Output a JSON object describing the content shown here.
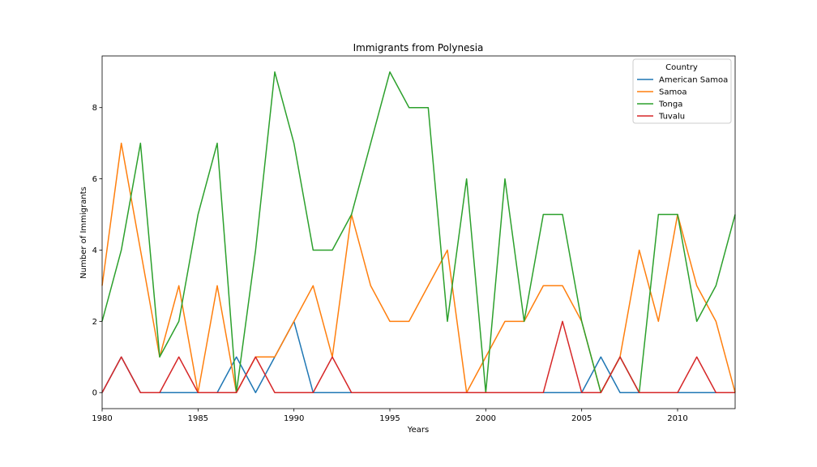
{
  "chart_data": {
    "type": "line",
    "title": "Immigrants from Polynesia",
    "xlabel": "Years",
    "ylabel": "Number of Immigrants",
    "xlim": [
      1980,
      2013
    ],
    "ylim": [
      -0.45,
      9.45
    ],
    "xticks": [
      1980,
      1985,
      1990,
      1995,
      2000,
      2005,
      2010
    ],
    "yticks": [
      0,
      2,
      4,
      6,
      8
    ],
    "grid": false,
    "legend": {
      "title": "Country",
      "position": "top-right"
    },
    "x": [
      1980,
      1981,
      1982,
      1983,
      1984,
      1985,
      1986,
      1987,
      1988,
      1989,
      1990,
      1991,
      1992,
      1993,
      1994,
      1995,
      1996,
      1997,
      1998,
      1999,
      2000,
      2001,
      2002,
      2003,
      2004,
      2005,
      2006,
      2007,
      2008,
      2009,
      2010,
      2011,
      2012,
      2013
    ],
    "series": [
      {
        "name": "American Samoa",
        "color": "#1f77b4",
        "values": [
          0,
          1,
          0,
          0,
          0,
          0,
          0,
          1,
          0,
          1,
          2,
          0,
          0,
          0,
          0,
          0,
          0,
          0,
          0,
          0,
          0,
          0,
          0,
          0,
          0,
          0,
          1,
          0,
          0,
          0,
          0,
          0,
          0,
          0
        ]
      },
      {
        "name": "Samoa",
        "color": "#ff7f0e",
        "values": [
          3,
          7,
          4,
          1,
          3,
          0,
          3,
          0,
          1,
          1,
          2,
          3,
          1,
          5,
          3,
          2,
          2,
          3,
          4,
          0,
          1,
          2,
          2,
          3,
          3,
          2,
          0,
          1,
          4,
          2,
          5,
          3,
          2,
          0
        ]
      },
      {
        "name": "Tonga",
        "color": "#2ca02c",
        "values": [
          2,
          4,
          7,
          1,
          2,
          5,
          7,
          0,
          4,
          9,
          7,
          4,
          4,
          5,
          7,
          9,
          8,
          8,
          2,
          6,
          0,
          6,
          2,
          5,
          5,
          2,
          0,
          1,
          0,
          5,
          5,
          2,
          3,
          5
        ]
      },
      {
        "name": "Tuvalu",
        "color": "#d62728",
        "values": [
          0,
          1,
          0,
          0,
          1,
          0,
          0,
          0,
          1,
          0,
          0,
          0,
          1,
          0,
          0,
          0,
          0,
          0,
          0,
          0,
          0,
          0,
          0,
          0,
          2,
          0,
          0,
          1,
          0,
          0,
          0,
          1,
          0,
          0
        ]
      }
    ]
  }
}
